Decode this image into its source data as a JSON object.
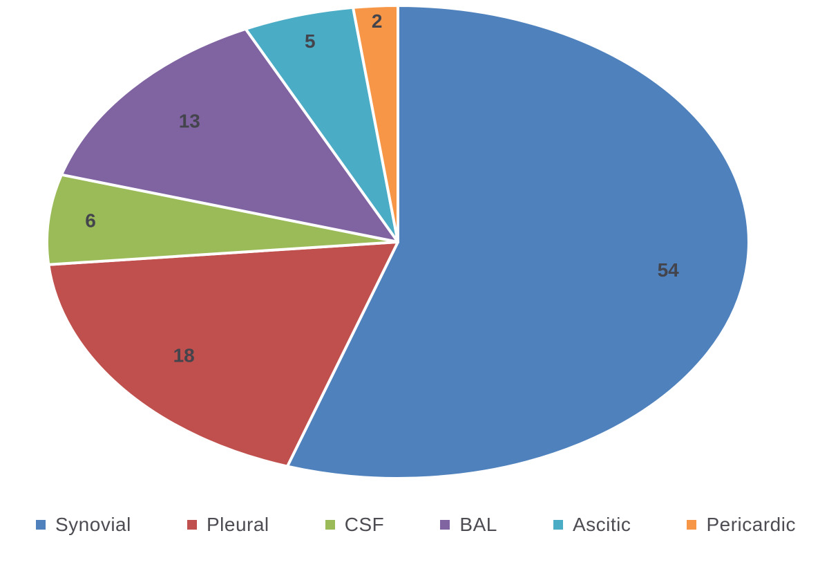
{
  "chart_data": {
    "type": "pie",
    "title": "",
    "categories": [
      "Synovial",
      "Pleural",
      "CSF",
      "BAL",
      "Ascitic",
      "Pericardic"
    ],
    "values": [
      54,
      18,
      6,
      13,
      5,
      2
    ],
    "data_labels": [
      "54",
      "18",
      "6",
      "13",
      "5",
      "2"
    ],
    "colors": [
      "#4F81BD",
      "#C0504D",
      "#9BBB59",
      "#8064A2",
      "#4BACC6",
      "#F79646"
    ],
    "slice_separator_color": "#ffffff",
    "data_label_color": "#44444d",
    "legend_position": "bottom",
    "start_angle_deg": 0,
    "clockwise": true
  }
}
